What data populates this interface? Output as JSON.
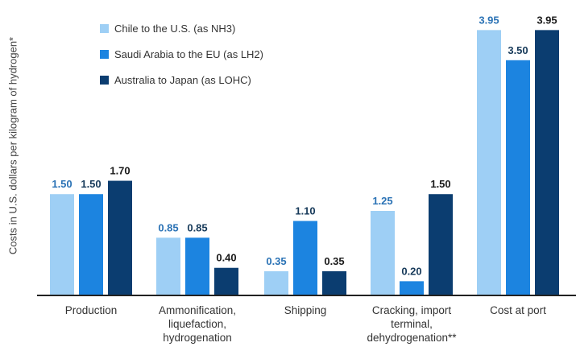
{
  "chart_data": {
    "type": "bar",
    "title": "",
    "ylabel": "Costs in U.S. dollars per kilogram of hydrogen*",
    "xlabel": "",
    "ylim": [
      0,
      4.2
    ],
    "grid": false,
    "legend_position": "top-left",
    "categories": [
      "Production",
      "Ammonification, liquefaction, hydrogenation",
      "Shipping",
      "Cracking, import terminal, dehydrogenation**",
      "Cost at port"
    ],
    "series": [
      {
        "name": "Chile to the U.S. (as NH3)",
        "color": "#9ecff5",
        "label_color": "#2a72b5",
        "values": [
          1.5,
          0.85,
          0.35,
          1.25,
          3.95
        ],
        "labels": [
          "1.50",
          "0.85",
          "0.35",
          "1.25",
          "3.95"
        ]
      },
      {
        "name": "Saudi Arabia to the EU (as LH2)",
        "color": "#1c84e0",
        "label_color": "#173a5a",
        "values": [
          1.5,
          0.85,
          1.1,
          0.2,
          3.5
        ],
        "labels": [
          "1.50",
          "0.85",
          "1.10",
          "0.20",
          "3.50"
        ]
      },
      {
        "name": "Australia to Japan (as LOHC)",
        "color": "#0b3d70",
        "label_color": "#1a1a1a",
        "values": [
          1.7,
          0.4,
          0.35,
          1.5,
          3.95
        ],
        "labels": [
          "1.70",
          "0.40",
          "0.35",
          "1.50",
          "3.95"
        ]
      }
    ]
  }
}
